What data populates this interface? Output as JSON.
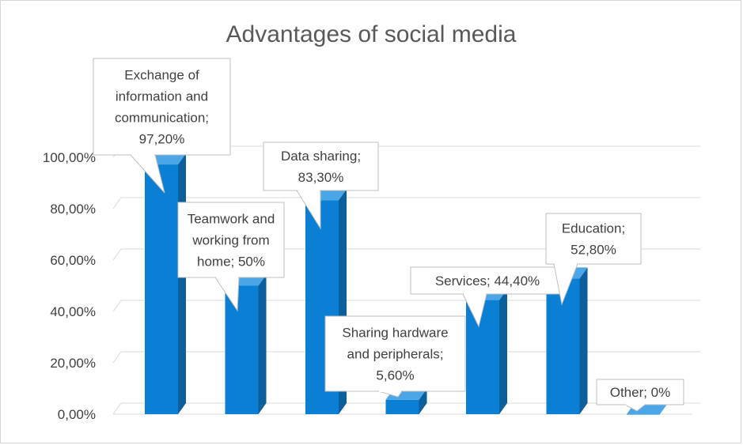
{
  "chart_data": {
    "type": "bar",
    "title": "Advantages of social media",
    "categories": [
      "Exchange of information and communication",
      "Teamwork and working from home",
      "Data sharing",
      "Sharing hardware and peripherals",
      "Services",
      "Education",
      "Other"
    ],
    "values": [
      97.2,
      50,
      83.3,
      5.6,
      44.4,
      52.8,
      0
    ],
    "data_labels": [
      [
        "Exchange of",
        "information and",
        "communication;",
        "97,20%"
      ],
      [
        "Teamwork and",
        "working from",
        "home; 50%"
      ],
      [
        "Data sharing;",
        "83,30%"
      ],
      [
        "Sharing hardware",
        "and peripherals;",
        "5,60%"
      ],
      [
        "Services; 44,40%"
      ],
      [
        "Education;",
        "52,80%"
      ],
      [
        "Other; 0%"
      ]
    ],
    "y_ticks": [
      "0,00%",
      "20,00%",
      "40,00%",
      "60,00%",
      "80,00%",
      "100,00%"
    ],
    "ylim": [
      0,
      100
    ],
    "grid": true,
    "legend": "none",
    "style": "3d-column",
    "bar_color": "#0a7fd3",
    "bar_side_color": "#0a5f9c",
    "bar_top_color": "#4aa6e6"
  }
}
